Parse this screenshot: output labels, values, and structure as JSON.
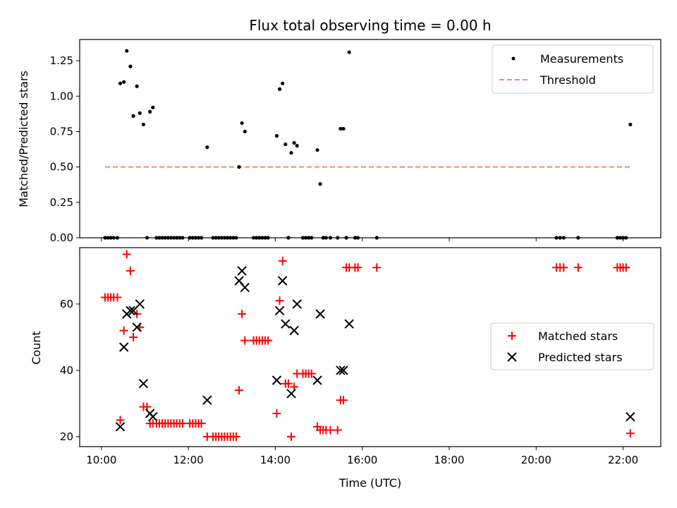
{
  "chart_data": [
    {
      "type": "scatter",
      "title": "Flux total observing time = 0.00 h",
      "xlabel": "",
      "ylabel": "Matched/Predicted stars",
      "xlim": [
        "09:30",
        "22:52"
      ],
      "ylim": [
        0,
        1.4
      ],
      "yticks": [
        "0.00",
        "0.25",
        "0.50",
        "0.75",
        "1.00",
        "1.25"
      ],
      "grid": false,
      "legend_position": "top-right",
      "series": [
        {
          "name": "Measurements",
          "marker": "dot",
          "color": "#000000",
          "points": [
            [
              "10:05",
              0
            ],
            [
              "10:09",
              0
            ],
            [
              "10:13",
              0
            ],
            [
              "10:17",
              0
            ],
            [
              "10:22",
              0
            ],
            [
              "10:26",
              1.09
            ],
            [
              "10:31",
              1.1
            ],
            [
              "10:35",
              1.32
            ],
            [
              "10:40",
              1.21
            ],
            [
              "10:44",
              0.86
            ],
            [
              "10:49",
              1.07
            ],
            [
              "10:53",
              0.88
            ],
            [
              "10:58",
              0.8
            ],
            [
              "11:03",
              0
            ],
            [
              "11:07",
              0.89
            ],
            [
              "11:11",
              0.92
            ],
            [
              "11:16",
              0
            ],
            [
              "11:20",
              0
            ],
            [
              "11:24",
              0
            ],
            [
              "11:28",
              0
            ],
            [
              "11:32",
              0
            ],
            [
              "11:36",
              0
            ],
            [
              "11:40",
              0
            ],
            [
              "11:44",
              0
            ],
            [
              "11:48",
              0
            ],
            [
              "11:52",
              0
            ],
            [
              "12:02",
              0
            ],
            [
              "12:06",
              0
            ],
            [
              "12:10",
              0
            ],
            [
              "12:14",
              0
            ],
            [
              "12:18",
              0
            ],
            [
              "12:26",
              0.64
            ],
            [
              "12:34",
              0
            ],
            [
              "12:38",
              0
            ],
            [
              "12:42",
              0
            ],
            [
              "12:46",
              0
            ],
            [
              "12:50",
              0
            ],
            [
              "12:54",
              0
            ],
            [
              "12:58",
              0
            ],
            [
              "13:02",
              0
            ],
            [
              "13:06",
              0
            ],
            [
              "13:10",
              0.5
            ],
            [
              "13:14",
              0.81
            ],
            [
              "13:18",
              0.75
            ],
            [
              "13:30",
              0
            ],
            [
              "13:34",
              0
            ],
            [
              "13:38",
              0
            ],
            [
              "13:42",
              0
            ],
            [
              "13:46",
              0
            ],
            [
              "13:50",
              0
            ],
            [
              "14:02",
              0.72
            ],
            [
              "14:06",
              1.05
            ],
            [
              "14:10",
              1.09
            ],
            [
              "14:14",
              0.66
            ],
            [
              "14:18",
              0
            ],
            [
              "14:22",
              0.6
            ],
            [
              "14:26",
              0.67
            ],
            [
              "14:30",
              0.65
            ],
            [
              "14:38",
              0
            ],
            [
              "14:42",
              0
            ],
            [
              "14:46",
              0
            ],
            [
              "14:50",
              0
            ],
            [
              "14:58",
              0.62
            ],
            [
              "15:02",
              0.38
            ],
            [
              "15:06",
              0
            ],
            [
              "15:10",
              0
            ],
            [
              "15:16",
              0
            ],
            [
              "15:26",
              0
            ],
            [
              "15:30",
              0.77
            ],
            [
              "15:34",
              0.77
            ],
            [
              "15:38",
              0
            ],
            [
              "15:42",
              1.31
            ],
            [
              "15:50",
              0
            ],
            [
              "15:54",
              0
            ],
            [
              "16:20",
              0
            ],
            [
              "20:28",
              0
            ],
            [
              "20:33",
              0
            ],
            [
              "20:38",
              0
            ],
            [
              "20:58",
              0
            ],
            [
              "21:52",
              0
            ],
            [
              "21:56",
              0
            ],
            [
              "22:00",
              0
            ],
            [
              "22:04",
              0
            ],
            [
              "22:10",
              0.8
            ]
          ]
        },
        {
          "name": "Threshold",
          "marker": "dashed-line",
          "color": "#ff7f7f",
          "points": [
            [
              "10:05",
              0.5
            ],
            [
              "22:10",
              0.5
            ]
          ]
        }
      ]
    },
    {
      "type": "scatter",
      "title": "",
      "xlabel": "Time (UTC)",
      "ylabel": "Count",
      "xlim": [
        "09:30",
        "22:52"
      ],
      "ylim": [
        17,
        77
      ],
      "yticks": [
        "20",
        "40",
        "60"
      ],
      "xticks": [
        "10:00",
        "12:00",
        "14:00",
        "16:00",
        "18:00",
        "20:00",
        "22:00"
      ],
      "grid": false,
      "legend_position": "center-right",
      "series": [
        {
          "name": "Matched stars",
          "marker": "plus",
          "color": "#ff0000",
          "points": [
            [
              "10:05",
              62
            ],
            [
              "10:09",
              62
            ],
            [
              "10:13",
              62
            ],
            [
              "10:17",
              62
            ],
            [
              "10:22",
              62
            ],
            [
              "10:26",
              25
            ],
            [
              "10:31",
              52
            ],
            [
              "10:35",
              75
            ],
            [
              "10:40",
              70
            ],
            [
              "10:44",
              50
            ],
            [
              "10:49",
              57
            ],
            [
              "10:53",
              53
            ],
            [
              "10:58",
              29
            ],
            [
              "11:03",
              29
            ],
            [
              "11:07",
              24
            ],
            [
              "11:11",
              24
            ],
            [
              "11:16",
              24
            ],
            [
              "11:20",
              24
            ],
            [
              "11:24",
              24
            ],
            [
              "11:28",
              24
            ],
            [
              "11:32",
              24
            ],
            [
              "11:36",
              24
            ],
            [
              "11:40",
              24
            ],
            [
              "11:44",
              24
            ],
            [
              "11:48",
              24
            ],
            [
              "11:52",
              24
            ],
            [
              "12:02",
              24
            ],
            [
              "12:06",
              24
            ],
            [
              "12:10",
              24
            ],
            [
              "12:14",
              24
            ],
            [
              "12:18",
              24
            ],
            [
              "12:26",
              20
            ],
            [
              "12:34",
              20
            ],
            [
              "12:38",
              20
            ],
            [
              "12:42",
              20
            ],
            [
              "12:46",
              20
            ],
            [
              "12:50",
              20
            ],
            [
              "12:54",
              20
            ],
            [
              "12:58",
              20
            ],
            [
              "13:02",
              20
            ],
            [
              "13:06",
              20
            ],
            [
              "13:10",
              34
            ],
            [
              "13:14",
              57
            ],
            [
              "13:18",
              49
            ],
            [
              "13:30",
              49
            ],
            [
              "13:34",
              49
            ],
            [
              "13:38",
              49
            ],
            [
              "13:42",
              49
            ],
            [
              "13:46",
              49
            ],
            [
              "13:50",
              49
            ],
            [
              "14:02",
              27
            ],
            [
              "14:06",
              61
            ],
            [
              "14:10",
              73
            ],
            [
              "14:14",
              36
            ],
            [
              "14:18",
              36
            ],
            [
              "14:22",
              20
            ],
            [
              "14:26",
              35
            ],
            [
              "14:30",
              39
            ],
            [
              "14:38",
              39
            ],
            [
              "14:42",
              39
            ],
            [
              "14:46",
              39
            ],
            [
              "14:50",
              39
            ],
            [
              "14:58",
              23
            ],
            [
              "15:02",
              22
            ],
            [
              "15:06",
              22
            ],
            [
              "15:10",
              22
            ],
            [
              "15:16",
              22
            ],
            [
              "15:26",
              22
            ],
            [
              "15:30",
              31
            ],
            [
              "15:34",
              31
            ],
            [
              "15:38",
              71
            ],
            [
              "15:42",
              71
            ],
            [
              "15:50",
              71
            ],
            [
              "15:54",
              71
            ],
            [
              "16:20",
              71
            ],
            [
              "20:28",
              71
            ],
            [
              "20:33",
              71
            ],
            [
              "20:38",
              71
            ],
            [
              "20:58",
              71
            ],
            [
              "21:52",
              71
            ],
            [
              "21:56",
              71
            ],
            [
              "22:00",
              71
            ],
            [
              "22:04",
              71
            ],
            [
              "22:10",
              21
            ]
          ]
        },
        {
          "name": "Predicted stars",
          "marker": "x",
          "color": "#000000",
          "points": [
            [
              "10:26",
              23
            ],
            [
              "10:31",
              47
            ],
            [
              "10:35",
              57
            ],
            [
              "10:40",
              58
            ],
            [
              "10:44",
              58
            ],
            [
              "10:49",
              53
            ],
            [
              "10:53",
              60
            ],
            [
              "10:58",
              36
            ],
            [
              "11:07",
              27
            ],
            [
              "11:11",
              26
            ],
            [
              "12:26",
              31
            ],
            [
              "13:10",
              67
            ],
            [
              "13:14",
              70
            ],
            [
              "13:18",
              65
            ],
            [
              "14:02",
              37
            ],
            [
              "14:06",
              58
            ],
            [
              "14:10",
              67
            ],
            [
              "14:14",
              54
            ],
            [
              "14:22",
              33
            ],
            [
              "14:26",
              52
            ],
            [
              "14:30",
              60
            ],
            [
              "14:58",
              37
            ],
            [
              "15:02",
              57
            ],
            [
              "15:30",
              40
            ],
            [
              "15:34",
              40
            ],
            [
              "15:42",
              54
            ],
            [
              "22:10",
              26
            ]
          ]
        }
      ]
    }
  ]
}
